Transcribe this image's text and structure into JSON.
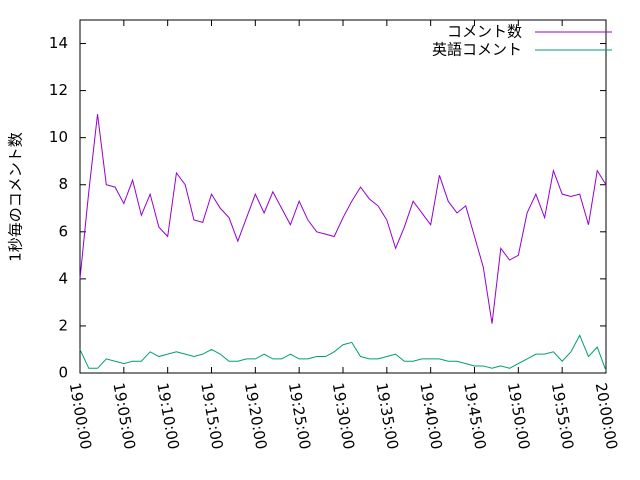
{
  "chart_data": {
    "type": "line",
    "ylabel": "1秒毎のコメント数",
    "x": [
      "19:00:00",
      "19:01:00",
      "19:02:00",
      "19:03:00",
      "19:04:00",
      "19:05:00",
      "19:06:00",
      "19:07:00",
      "19:08:00",
      "19:09:00",
      "19:10:00",
      "19:11:00",
      "19:12:00",
      "19:13:00",
      "19:14:00",
      "19:15:00",
      "19:16:00",
      "19:17:00",
      "19:18:00",
      "19:19:00",
      "19:20:00",
      "19:21:00",
      "19:22:00",
      "19:23:00",
      "19:24:00",
      "19:25:00",
      "19:26:00",
      "19:27:00",
      "19:28:00",
      "19:29:00",
      "19:30:00",
      "19:31:00",
      "19:32:00",
      "19:33:00",
      "19:34:00",
      "19:35:00",
      "19:36:00",
      "19:37:00",
      "19:38:00",
      "19:39:00",
      "19:40:00",
      "19:41:00",
      "19:42:00",
      "19:43:00",
      "19:44:00",
      "19:45:00",
      "19:46:00",
      "19:47:00",
      "19:48:00",
      "19:49:00",
      "19:50:00",
      "19:51:00",
      "19:52:00",
      "19:53:00",
      "19:54:00",
      "19:55:00",
      "19:56:00",
      "19:57:00",
      "19:58:00",
      "19:59:00",
      "20:00:00"
    ],
    "series": [
      {
        "name": "コメント数",
        "color": "#9400d3",
        "values": [
          4.0,
          7.7,
          11.0,
          8.0,
          7.9,
          7.2,
          8.2,
          6.7,
          7.6,
          6.2,
          5.8,
          8.5,
          8.0,
          6.5,
          6.4,
          7.6,
          7.0,
          6.6,
          5.6,
          6.6,
          7.6,
          6.8,
          7.7,
          7.0,
          6.3,
          7.3,
          6.5,
          6.0,
          5.9,
          5.8,
          6.6,
          7.3,
          7.9,
          7.4,
          7.1,
          6.5,
          5.3,
          6.2,
          7.3,
          6.8,
          6.3,
          8.4,
          7.3,
          6.8,
          7.1,
          5.8,
          4.5,
          2.1,
          5.3,
          4.8,
          5.0,
          6.8,
          7.6,
          6.6,
          8.6,
          7.6,
          7.5,
          7.6,
          6.3,
          8.6,
          8.0
        ]
      },
      {
        "name": "英語コメント",
        "color": "#009e73",
        "values": [
          1.0,
          0.2,
          0.2,
          0.6,
          0.5,
          0.4,
          0.5,
          0.5,
          0.9,
          0.7,
          0.8,
          0.9,
          0.8,
          0.7,
          0.8,
          1.0,
          0.8,
          0.5,
          0.5,
          0.6,
          0.6,
          0.8,
          0.6,
          0.6,
          0.8,
          0.6,
          0.6,
          0.7,
          0.7,
          0.9,
          1.2,
          1.3,
          0.7,
          0.6,
          0.6,
          0.7,
          0.8,
          0.5,
          0.5,
          0.6,
          0.6,
          0.6,
          0.5,
          0.5,
          0.4,
          0.3,
          0.3,
          0.2,
          0.3,
          0.2,
          0.4,
          0.6,
          0.8,
          0.8,
          0.9,
          0.5,
          0.9,
          1.6,
          0.7,
          1.1,
          0.1
        ]
      }
    ],
    "xlim": [
      "19:00:00",
      "20:00:00"
    ],
    "xticks": [
      "19:00:00",
      "19:05:00",
      "19:10:00",
      "19:15:00",
      "19:20:00",
      "19:25:00",
      "19:30:00",
      "19:35:00",
      "19:40:00",
      "19:45:00",
      "19:50:00",
      "19:55:00",
      "20:00:00"
    ],
    "ylim": [
      0,
      15
    ],
    "yticks": [
      0,
      2,
      4,
      6,
      8,
      10,
      12,
      14
    ],
    "grid": false,
    "legend": "top-right"
  }
}
